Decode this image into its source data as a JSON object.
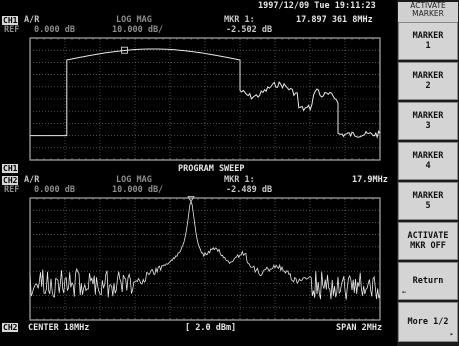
{
  "status": {
    "datetime": "1997/12/09 Tue 19:11:23"
  },
  "ch1": {
    "tag": "CH1",
    "measurement": "A/R",
    "format": "LOG MAG",
    "ref_label": "REF",
    "ref_value": "0.000 dB",
    "scale": "10.000 dB/",
    "marker_label": "MKR 1:",
    "marker_freq": "17.897 361 8MHz",
    "marker_value": "-2.502 dB",
    "footer_tag": "CH1",
    "footer_center": "PROGRAM SWEEP"
  },
  "ch2": {
    "tag": "CH2",
    "measurement": "A/R",
    "format": "LOG MAG",
    "ref_label": "REF",
    "ref_value": "0.000 dB",
    "scale": "10.000 dB/",
    "marker_label": "MKR 1:",
    "marker_freq": "17.9MHz",
    "marker_value": "-2.489 dB",
    "footer_tag": "CH2",
    "footer_left": "CENTER 18MHz",
    "footer_center": "[ 2.0 dBm]",
    "footer_right": "SPAN 2MHz"
  },
  "softkeys": {
    "title": "ACTIVATE MARKER",
    "items": [
      {
        "line1": "MARKER",
        "line2": "1"
      },
      {
        "line1": "MARKER",
        "line2": "2"
      },
      {
        "line1": "MARKER",
        "line2": "3"
      },
      {
        "line1": "MARKER",
        "line2": "4"
      },
      {
        "line1": "MARKER",
        "line2": "5"
      },
      {
        "line1": "ACTIVATE",
        "line2": "MKR OFF"
      },
      {
        "line1": "Return",
        "line2": ""
      },
      {
        "line1": "More 1/2",
        "line2": ""
      }
    ]
  },
  "colors": {
    "trace": "#e8e8e8",
    "grid": "#8a8a8a",
    "frame": "#d0d0d0",
    "background": "#000000",
    "softkey": "#d4d4d4"
  }
}
